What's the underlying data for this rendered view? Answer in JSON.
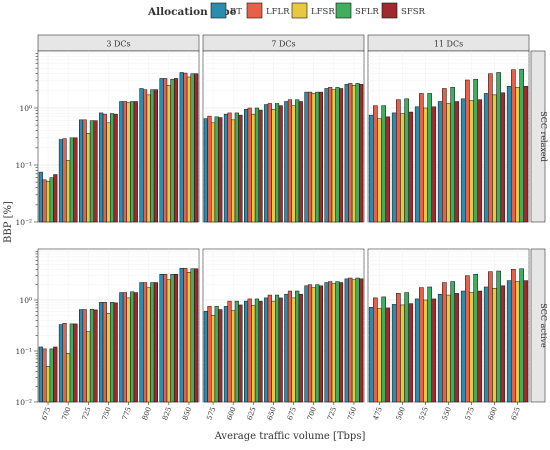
{
  "chart_data": {
    "type": "bar",
    "xlabel": "Average traffic volume [Tbps]",
    "ylabel": "BBP [%]",
    "yscale": "log10",
    "ylim": [
      0.01,
      10
    ],
    "ytick_labels": [
      "10⁻²",
      "10⁻¹",
      "10⁰"
    ],
    "ytick_values": [
      0.01,
      0.1,
      1
    ],
    "grid": true,
    "legend": {
      "title": "Allocation type",
      "position": "top",
      "entries": [
        {
          "name": "BT",
          "color": "#2a8db0"
        },
        {
          "name": "LFLR",
          "color": "#e8604a"
        },
        {
          "name": "LFSR",
          "color": "#e8c842"
        },
        {
          "name": "SFLR",
          "color": "#3fae5e"
        },
        {
          "name": "SFSR",
          "color": "#9c2a2e"
        }
      ]
    },
    "columns": [
      {
        "label": "3 DCs",
        "categories": [
          "675",
          "700",
          "725",
          "750",
          "775",
          "800",
          "825",
          "850"
        ]
      },
      {
        "label": "7 DCs",
        "categories": [
          "575",
          "600",
          "625",
          "650",
          "675",
          "700",
          "725",
          "750"
        ]
      },
      {
        "label": "11 DCs",
        "categories": [
          "475",
          "500",
          "525",
          "550",
          "575",
          "600",
          "625"
        ]
      }
    ],
    "rows": [
      {
        "label": "SCC relaxed"
      },
      {
        "label": "SCC active"
      }
    ],
    "panels": [
      {
        "row": "SCC relaxed",
        "column": "3 DCs",
        "series": [
          {
            "name": "BT",
            "values": [
              0.075,
              0.28,
              0.62,
              0.82,
              1.3,
              2.2,
              3.3,
              4.2
            ]
          },
          {
            "name": "LFLR",
            "values": [
              0.055,
              0.29,
              0.62,
              0.78,
              1.3,
              2.1,
              3.3,
              4.1
            ]
          },
          {
            "name": "LFSR",
            "values": [
              0.052,
              0.12,
              0.36,
              0.55,
              1.25,
              1.7,
              2.5,
              3.5
            ]
          },
          {
            "name": "SFLR",
            "values": [
              0.06,
              0.3,
              0.6,
              0.8,
              1.3,
              2.1,
              3.2,
              4.0
            ]
          },
          {
            "name": "SFSR",
            "values": [
              0.068,
              0.3,
              0.6,
              0.78,
              1.3,
              2.1,
              3.3,
              4.0
            ]
          }
        ]
      },
      {
        "row": "SCC relaxed",
        "column": "7 DCs",
        "series": [
          {
            "name": "BT",
            "values": [
              0.65,
              0.78,
              0.95,
              1.15,
              1.3,
              1.9,
              2.2,
              2.6
            ]
          },
          {
            "name": "LFLR",
            "values": [
              0.72,
              0.82,
              1.0,
              1.2,
              1.4,
              1.9,
              2.3,
              2.7
            ]
          },
          {
            "name": "LFSR",
            "values": [
              0.55,
              0.62,
              0.78,
              0.95,
              1.1,
              1.8,
              2.1,
              2.5
            ]
          },
          {
            "name": "SFLR",
            "values": [
              0.7,
              0.82,
              1.0,
              1.2,
              1.4,
              1.9,
              2.3,
              2.7
            ]
          },
          {
            "name": "SFSR",
            "values": [
              0.68,
              0.75,
              0.92,
              1.1,
              1.3,
              1.9,
              2.2,
              2.6
            ]
          }
        ]
      },
      {
        "row": "SCC relaxed",
        "column": "11 DCs",
        "series": [
          {
            "name": "BT",
            "values": [
              0.75,
              0.82,
              1.05,
              1.3,
              1.45,
              1.8,
              2.4
            ]
          },
          {
            "name": "LFLR",
            "values": [
              1.1,
              1.4,
              1.8,
              2.2,
              3.1,
              4.0,
              4.7
            ]
          },
          {
            "name": "LFSR",
            "values": [
              0.65,
              0.8,
              1.0,
              1.2,
              1.35,
              1.7,
              2.3
            ]
          },
          {
            "name": "SFLR",
            "values": [
              1.1,
              1.45,
              1.8,
              2.3,
              3.2,
              4.2,
              4.8
            ]
          },
          {
            "name": "SFSR",
            "values": [
              0.7,
              0.85,
              1.05,
              1.3,
              1.4,
              1.85,
              2.4
            ]
          }
        ]
      },
      {
        "row": "SCC active",
        "column": "3 DCs",
        "series": [
          {
            "name": "BT",
            "values": [
              0.12,
              0.33,
              0.65,
              0.9,
              1.4,
              2.2,
              3.2,
              4.2
            ]
          },
          {
            "name": "LFLR",
            "values": [
              0.11,
              0.35,
              0.65,
              0.9,
              1.4,
              2.2,
              3.2,
              4.2
            ]
          },
          {
            "name": "LFSR",
            "values": [
              0.05,
              0.09,
              0.24,
              0.55,
              1.1,
              1.75,
              2.5,
              3.5
            ]
          },
          {
            "name": "SFLR",
            "values": [
              0.11,
              0.34,
              0.66,
              0.9,
              1.45,
              2.2,
              3.2,
              4.1
            ]
          },
          {
            "name": "SFSR",
            "values": [
              0.12,
              0.34,
              0.64,
              0.88,
              1.4,
              2.2,
              3.2,
              4.1
            ]
          }
        ]
      },
      {
        "row": "SCC active",
        "column": "7 DCs",
        "series": [
          {
            "name": "BT",
            "values": [
              0.6,
              0.75,
              0.95,
              1.1,
              1.3,
              1.9,
              2.2,
              2.6
            ]
          },
          {
            "name": "LFLR",
            "values": [
              0.75,
              0.95,
              1.05,
              1.25,
              1.5,
              2.0,
              2.3,
              2.7
            ]
          },
          {
            "name": "LFSR",
            "values": [
              0.5,
              0.62,
              0.78,
              0.95,
              1.1,
              1.75,
              2.1,
              2.5
            ]
          },
          {
            "name": "SFLR",
            "values": [
              0.75,
              0.95,
              1.05,
              1.25,
              1.5,
              2.0,
              2.3,
              2.7
            ]
          },
          {
            "name": "SFSR",
            "values": [
              0.65,
              0.8,
              0.95,
              1.1,
              1.3,
              1.9,
              2.2,
              2.6
            ]
          }
        ]
      },
      {
        "row": "SCC active",
        "column": "11 DCs",
        "series": [
          {
            "name": "BT",
            "values": [
              0.72,
              0.82,
              1.05,
              1.3,
              1.5,
              1.8,
              2.4
            ]
          },
          {
            "name": "LFLR",
            "values": [
              1.1,
              1.35,
              1.75,
              2.2,
              3.0,
              3.6,
              4.0
            ]
          },
          {
            "name": "LFSR",
            "values": [
              0.68,
              0.8,
              1.0,
              1.25,
              1.4,
              1.7,
              2.3
            ]
          },
          {
            "name": "SFLR",
            "values": [
              1.15,
              1.4,
              1.8,
              2.3,
              3.2,
              3.7,
              4.1
            ]
          },
          {
            "name": "SFSR",
            "values": [
              0.7,
              0.85,
              1.05,
              1.35,
              1.5,
              1.9,
              2.4
            ]
          }
        ]
      }
    ]
  }
}
